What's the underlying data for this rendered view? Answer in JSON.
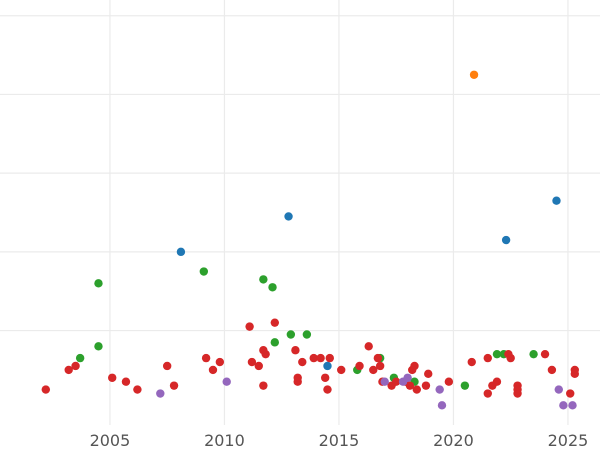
{
  "chart_data": {
    "type": "scatter",
    "title": "",
    "xlabel": "",
    "ylabel": "",
    "xlim": [
      2000.2,
      2026.4
    ],
    "ylim": [
      -0.4,
      10.4
    ],
    "grid": true,
    "legend": "none",
    "x_ticks": [
      2005,
      2010,
      2015,
      2020,
      2025
    ],
    "x_tick_labels": [
      "2005",
      "2010",
      "2015",
      "2020",
      "2025"
    ],
    "y_ticks": [
      2,
      4,
      6,
      8,
      10
    ],
    "series": [
      {
        "color": "#1f77b4",
        "points": [
          [
            2008.1,
            4.0
          ],
          [
            2012.8,
            4.9
          ],
          [
            2022.3,
            4.3
          ],
          [
            2024.5,
            5.3
          ],
          [
            2014.5,
            1.1
          ]
        ]
      },
      {
        "color": "#ff7f0e",
        "points": [
          [
            2020.9,
            8.5
          ]
        ]
      },
      {
        "color": "#2ca02c",
        "points": [
          [
            2003.7,
            1.3
          ],
          [
            2004.5,
            3.2
          ],
          [
            2004.5,
            1.6
          ],
          [
            2009.1,
            3.5
          ],
          [
            2011.7,
            3.3
          ],
          [
            2012.1,
            3.1
          ],
          [
            2012.2,
            1.7
          ],
          [
            2012.9,
            1.9
          ],
          [
            2013.6,
            1.9
          ],
          [
            2015.8,
            1.0
          ],
          [
            2016.8,
            1.3
          ],
          [
            2017.4,
            0.8
          ],
          [
            2018.3,
            0.7
          ],
          [
            2020.5,
            0.6
          ],
          [
            2021.9,
            1.4
          ],
          [
            2022.2,
            1.4
          ],
          [
            2023.5,
            1.4
          ]
        ]
      },
      {
        "color": "#d62728",
        "points": [
          [
            2002.2,
            0.5
          ],
          [
            2003.2,
            1.0
          ],
          [
            2003.5,
            1.1
          ],
          [
            2005.1,
            0.8
          ],
          [
            2005.7,
            0.7
          ],
          [
            2006.2,
            0.5
          ],
          [
            2007.5,
            1.1
          ],
          [
            2007.8,
            0.6
          ],
          [
            2009.2,
            1.3
          ],
          [
            2009.5,
            1.0
          ],
          [
            2009.8,
            1.2
          ],
          [
            2011.1,
            2.1
          ],
          [
            2011.2,
            1.2
          ],
          [
            2011.5,
            1.1
          ],
          [
            2011.7,
            1.5
          ],
          [
            2011.8,
            1.4
          ],
          [
            2011.7,
            0.6
          ],
          [
            2012.2,
            2.2
          ],
          [
            2013.1,
            1.5
          ],
          [
            2013.2,
            0.7
          ],
          [
            2013.2,
            0.8
          ],
          [
            2013.4,
            1.2
          ],
          [
            2013.9,
            1.3
          ],
          [
            2014.2,
            1.3
          ],
          [
            2014.4,
            0.8
          ],
          [
            2014.6,
            1.3
          ],
          [
            2014.5,
            0.5
          ],
          [
            2015.1,
            1.0
          ],
          [
            2015.9,
            1.1
          ],
          [
            2016.3,
            1.6
          ],
          [
            2016.5,
            1.0
          ],
          [
            2016.7,
            1.3
          ],
          [
            2016.8,
            1.1
          ],
          [
            2016.9,
            0.7
          ],
          [
            2017.3,
            0.6
          ],
          [
            2017.5,
            0.7
          ],
          [
            2017.9,
            0.7
          ],
          [
            2018.1,
            0.6
          ],
          [
            2018.2,
            1.0
          ],
          [
            2018.3,
            1.1
          ],
          [
            2018.4,
            0.5
          ],
          [
            2018.8,
            0.6
          ],
          [
            2018.9,
            0.9
          ],
          [
            2019.8,
            0.7
          ],
          [
            2020.8,
            1.2
          ],
          [
            2021.5,
            1.3
          ],
          [
            2021.5,
            0.4
          ],
          [
            2021.7,
            0.6
          ],
          [
            2021.9,
            0.7
          ],
          [
            2022.4,
            1.4
          ],
          [
            2022.5,
            1.3
          ],
          [
            2022.8,
            0.6
          ],
          [
            2022.8,
            0.5
          ],
          [
            2022.8,
            0.4
          ],
          [
            2024.0,
            1.4
          ],
          [
            2024.3,
            1.0
          ],
          [
            2025.1,
            0.4
          ],
          [
            2025.3,
            0.9
          ],
          [
            2025.3,
            1.0
          ]
        ]
      },
      {
        "color": "#9467bd",
        "points": [
          [
            2007.2,
            0.4
          ],
          [
            2010.1,
            0.7
          ],
          [
            2017.0,
            0.7
          ],
          [
            2017.8,
            0.7
          ],
          [
            2018.0,
            0.8
          ],
          [
            2019.4,
            0.5
          ],
          [
            2019.5,
            0.1
          ],
          [
            2024.6,
            0.5
          ],
          [
            2024.8,
            0.1
          ],
          [
            2025.2,
            0.1
          ]
        ]
      }
    ]
  }
}
